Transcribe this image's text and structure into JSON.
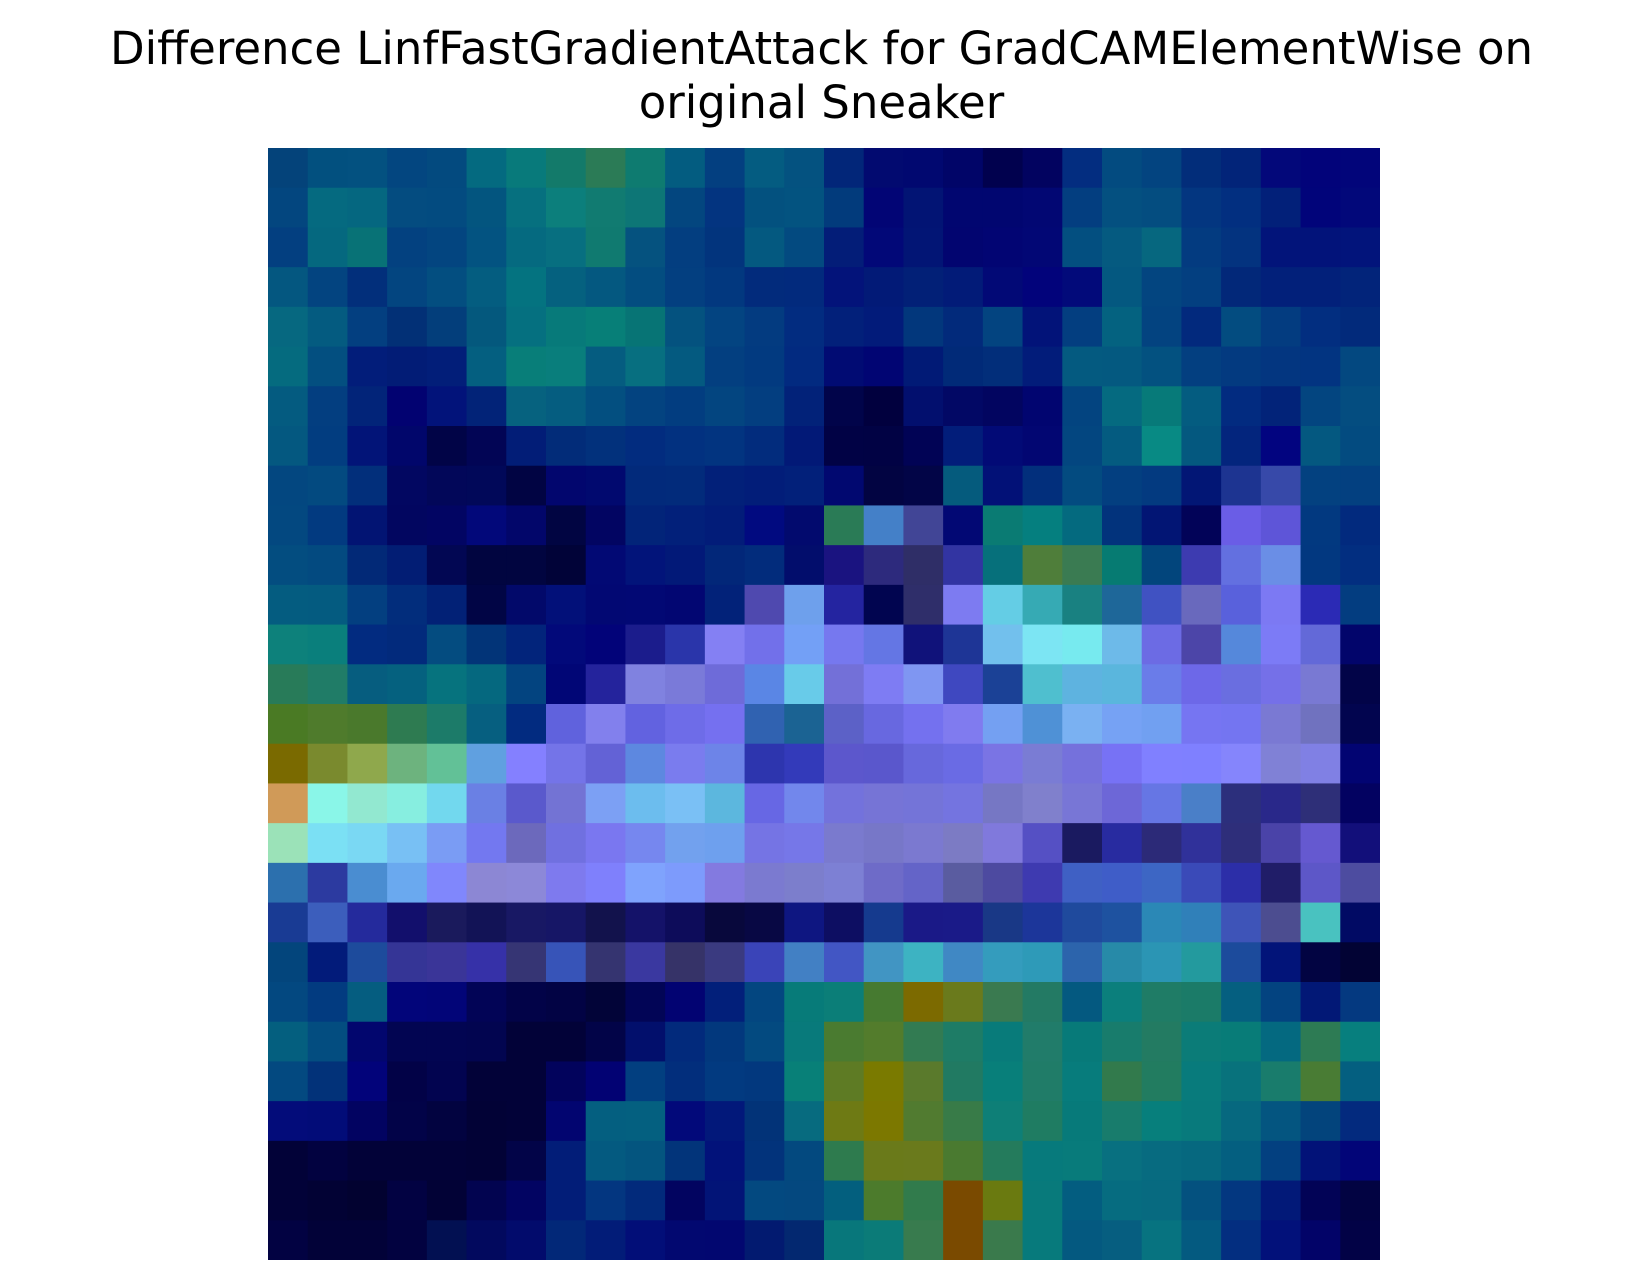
{
  "title_lines": [
    "Difference LinfFastGradientAttack for GradCAMElementWise on",
    "original Sneaker"
  ],
  "chart_data": {
    "type": "heatmap",
    "title": "Difference LinfFastGradientAttack for GradCAMElementWise on original Sneaker",
    "xlabel": "",
    "ylabel": "",
    "axes_visible": false,
    "grid": false,
    "rows": 28,
    "cols": 28,
    "values": [
      [
        "#04437a",
        "#02507f",
        "#035180",
        "#034680",
        "#034a7f",
        "#046a80",
        "#087a7b",
        "#137a6a",
        "#2b7b56",
        "#0e7b70",
        "#035c80",
        "#033f80",
        "#045c81",
        "#045280",
        "#022679",
        "#020a70",
        "#010870",
        "#010568",
        "#01014e",
        "#020360",
        "#032d80",
        "#034b80",
        "#034480",
        "#022d7a",
        "#022479",
        "#03087a",
        "#02037a",
        "#02057a"
      ],
      [
        "#03467f",
        "#056a80",
        "#056780",
        "#044c80",
        "#034b80",
        "#03557f",
        "#06707f",
        "#0c7f7c",
        "#117b71",
        "#0d7676",
        "#03467f",
        "#033480",
        "#03517f",
        "#035380",
        "#023b7c",
        "#020575",
        "#021474",
        "#010670",
        "#010670",
        "#020773",
        "#033e80",
        "#045080",
        "#044d80",
        "#033680",
        "#022f80",
        "#022079",
        "#01047a",
        "#02087a"
      ],
      [
        "#033f80",
        "#05687f",
        "#087276",
        "#034180",
        "#034580",
        "#035381",
        "#056a80",
        "#076f80",
        "#107a70",
        "#05527f",
        "#033e80",
        "#02347d",
        "#045980",
        "#034a80",
        "#031d78",
        "#020878",
        "#021575",
        "#020570",
        "#020573",
        "#020775",
        "#034f80",
        "#055a80",
        "#06677f",
        "#033b80",
        "#03337f",
        "#02147a",
        "#02137a",
        "#02147b"
      ],
      [
        "#045780",
        "#034480",
        "#022f7b",
        "#034580",
        "#034e80",
        "#045d80",
        "#047380",
        "#05617f",
        "#045880",
        "#034d80",
        "#033f80",
        "#02387f",
        "#022b7c",
        "#022a7d",
        "#03137a",
        "#021a77",
        "#022077",
        "#021b78",
        "#020976",
        "#02037b",
        "#020a7a",
        "#045880",
        "#034580",
        "#033f80",
        "#022879",
        "#02207a",
        "#02207a",
        "#02247a"
      ],
      [
        "#066880",
        "#045b80",
        "#033f80",
        "#023076",
        "#033e7b",
        "#04587d",
        "#057080",
        "#077a7a",
        "#077f78",
        "#077475",
        "#04527f",
        "#034481",
        "#033b80",
        "#022c80",
        "#02207a",
        "#021b7a",
        "#02377c",
        "#022a7b",
        "#034480",
        "#021379",
        "#033e80",
        "#046280",
        "#034380",
        "#02297d",
        "#034c80",
        "#033c80",
        "#022e80",
        "#022a7b"
      ],
      [
        "#056b7f",
        "#034f80",
        "#021d7a",
        "#021c76",
        "#021e79",
        "#045f80",
        "#087e79",
        "#097e7c",
        "#055c80",
        "#076f80",
        "#045a80",
        "#033f80",
        "#023a80",
        "#022a80",
        "#010b73",
        "#010573",
        "#011a76",
        "#012a78",
        "#022e7a",
        "#021c7a",
        "#045a80",
        "#045980",
        "#035180",
        "#033f80",
        "#033a80",
        "#033680",
        "#023481",
        "#034880"
      ],
      [
        "#045b80",
        "#033e80",
        "#022479",
        "#020271",
        "#02137a",
        "#022378",
        "#06627f",
        "#055d80",
        "#034f80",
        "#034380",
        "#023d80",
        "#034580",
        "#033e80",
        "#022279",
        "#01044a",
        "#01003e",
        "#020f6e",
        "#020865",
        "#020560",
        "#010570",
        "#034480",
        "#056a80",
        "#077a79",
        "#045c80",
        "#022b80",
        "#022379",
        "#034580",
        "#044d80"
      ],
      [
        "#045880",
        "#023d80",
        "#021478",
        "#01066b",
        "#010447",
        "#020555",
        "#021d77",
        "#022c79",
        "#02317c",
        "#022c7f",
        "#023180",
        "#023480",
        "#022c7d",
        "#021977",
        "#010245",
        "#010244",
        "#010355",
        "#021d7a",
        "#020a76",
        "#020672",
        "#034680",
        "#045b80",
        "#088a84",
        "#04587f",
        "#03257d",
        "#020480",
        "#045880",
        "#034b80"
      ],
      [
        "#034780",
        "#034a80",
        "#022f7b",
        "#020761",
        "#020759",
        "#010859",
        "#010443",
        "#02066e",
        "#01096f",
        "#022a7b",
        "#022b7b",
        "#022079",
        "#021d79",
        "#02207a",
        "#010870",
        "#020442",
        "#020547",
        "#055b7d",
        "#021177",
        "#022f7c",
        "#034b80",
        "#033f80",
        "#033a80",
        "#021675",
        "#1d3491",
        "#3749a9",
        "#034180",
        "#034080"
      ],
      [
        "#034880",
        "#023a80",
        "#021473",
        "#020660",
        "#020563",
        "#02087a",
        "#02066a",
        "#010542",
        "#020562",
        "#022479",
        "#02207a",
        "#021c79",
        "#010a80",
        "#020a6e",
        "#2a7b56",
        "#4480c8",
        "#414596",
        "#020874",
        "#0a7b73",
        "#057f7f",
        "#046a7f",
        "#02337c",
        "#021574",
        "#020358",
        "#6a5de6",
        "#5e55d8",
        "#023980",
        "#022a7e"
      ],
      [
        "#034d80",
        "#034a80",
        "#022977",
        "#021d74",
        "#020753",
        "#010540",
        "#010540",
        "#010338",
        "#020974",
        "#02147a",
        "#021978",
        "#022779",
        "#022c7c",
        "#020d6c",
        "#1a1380",
        "#2d2a7d",
        "#2f2e67",
        "#3234a2",
        "#06707b",
        "#4f7e3a",
        "#3a7b52",
        "#067b72",
        "#02457c",
        "#3d3bb0",
        "#6370e0",
        "#6a8ee6",
        "#023880",
        "#022e80"
      ],
      [
        "#045c80",
        "#045b80",
        "#033f80",
        "#022d7c",
        "#022176",
        "#010545",
        "#02096a",
        "#021079",
        "#020873",
        "#020874",
        "#020672",
        "#022279",
        "#4f49af",
        "#6ea0ec",
        "#2424a0",
        "#010550",
        "#2f2e6a",
        "#7d7bf1",
        "#64cde5",
        "#36aab4",
        "#198181",
        "#1e6799",
        "#4052c2",
        "#6969bd",
        "#5961dc",
        "#7c79f3",
        "#2b2ab5",
        "#033d80"
      ],
      [
        "#0d817b",
        "#0a7f7c",
        "#022b80",
        "#022a7c",
        "#044c80",
        "#023478",
        "#02247b",
        "#02097a",
        "#020379",
        "#1b1c8c",
        "#2a35aa",
        "#8480f3",
        "#7270ea",
        "#73a0f6",
        "#7678ef",
        "#6476e4",
        "#10127a",
        "#1e3596",
        "#72c0ed",
        "#7ce5f3",
        "#77eaef",
        "#6dbae9",
        "#6c6be4",
        "#4c45a8",
        "#5588db",
        "#7c7bf6",
        "#6369d8",
        "#02056b"
      ],
      [
        "#287b59",
        "#207c67",
        "#065d7f",
        "#05617f",
        "#06737e",
        "#05687f",
        "#034480",
        "#010676",
        "#24239c",
        "#8082e0",
        "#7a7ad9",
        "#6e6bd9",
        "#5a86e5",
        "#68cbe9",
        "#7370d8",
        "#7e7cf3",
        "#7f96f2",
        "#3f48c0",
        "#1b4196",
        "#4fbfcf",
        "#5eb3e0",
        "#5ab6dd",
        "#6a7ce9",
        "#6d68e8",
        "#6a6ee0",
        "#7570e8",
        "#7979d3",
        "#020448"
      ],
      [
        "#4a7a24",
        "#4f7b2c",
        "#4a792c",
        "#2e7b51",
        "#1c7b69",
        "#065f80",
        "#022b80",
        "#6062dd",
        "#8280ed",
        "#6262e0",
        "#6e6ce8",
        "#7570f0",
        "#3062b1",
        "#1b6393",
        "#5c61c7",
        "#6868e0",
        "#7471ef",
        "#807bef",
        "#74a0f2",
        "#4f91d6",
        "#7ab1f2",
        "#76a2f4",
        "#71a0f1",
        "#7675f2",
        "#7475f1",
        "#7a79d3",
        "#7072bf",
        "#02054f"
      ],
      [
        "#7a6a00",
        "#7a8a2e",
        "#8fa84c",
        "#6db37e",
        "#62c197",
        "#60a0e0",
        "#8480ff",
        "#7474e8",
        "#6362d6",
        "#5d88e0",
        "#7a7cee",
        "#6d84e8",
        "#2d35ae",
        "#333aba",
        "#5c57cc",
        "#5a57cc",
        "#6768dc",
        "#6a6be4",
        "#7a74e4",
        "#7a7cd4",
        "#7571dc",
        "#7772f5",
        "#8080ff",
        "#7f80ff",
        "#8585fc",
        "#8081d6",
        "#8080e4",
        "#020472"
      ],
      [
        "#d09a58",
        "#8af6e8",
        "#92e8d0",
        "#87eee0",
        "#72d8ee",
        "#6a80e4",
        "#5a59cc",
        "#7373d4",
        "#7ca0f4",
        "#6cbdee",
        "#7ac0f5",
        "#5cb7de",
        "#6767e4",
        "#7287ec",
        "#7372dc",
        "#7674d6",
        "#7474d8",
        "#7474e0",
        "#7677c4",
        "#8080cc",
        "#7876d6",
        "#6d67d7",
        "#6676e4",
        "#4a7fc8",
        "#2c2f7c",
        "#29288a",
        "#2e2f78",
        "#030261"
      ],
      [
        "#9be2b8",
        "#7be0f4",
        "#7ad8f3",
        "#78c0f4",
        "#7a9cf4",
        "#7378f0",
        "#6c69bc",
        "#7070e0",
        "#7a77f0",
        "#7687ef",
        "#72a1ee",
        "#6ea0ee",
        "#7574e4",
        "#7677e8",
        "#7a7ace",
        "#7777c8",
        "#7b79d0",
        "#7c7bc4",
        "#8079dc",
        "#5550c4",
        "#1a1a60",
        "#282ba0",
        "#2c2a78",
        "#30319a",
        "#2e2e7a",
        "#4a43a8",
        "#6559d0",
        "#120f7a"
      ],
      [
        "#2c70ae",
        "#2c3aa0",
        "#4a8dd1",
        "#6aa9ef",
        "#8087fc",
        "#8c87d4",
        "#8c88d8",
        "#7e7aee",
        "#7f80fc",
        "#7fa3fd",
        "#7d9bfc",
        "#837ae0",
        "#7b7ad0",
        "#7c7ecc",
        "#7d80d4",
        "#6e6bc8",
        "#6464c8",
        "#5a5ca0",
        "#4d4aa0",
        "#3e3ab0",
        "#3f60c4",
        "#3f5dc8",
        "#3d66c4",
        "#3a4ab8",
        "#2c2ea8",
        "#201d68",
        "#5d57c8",
        "#4d4ca0"
      ],
      [
        "#193b94",
        "#3c5ebc",
        "#242a9c",
        "#120f6c",
        "#1a1a5c",
        "#121356",
        "#181864",
        "#161666",
        "#12124c",
        "#141269",
        "#0d0c5a",
        "#08083c",
        "#080844",
        "#0e1681",
        "#0d0e62",
        "#153a8e",
        "#1a1987",
        "#1a1a88",
        "#193886",
        "#1c369a",
        "#1f4a9d",
        "#1e52a0",
        "#2b88b6",
        "#3080b9",
        "#3e54b8",
        "#4c4d90",
        "#49c2c0",
        "#010a64"
      ],
      [
        "#03457c",
        "#021b7a",
        "#1d4b9c",
        "#353596",
        "#3a3598",
        "#3631a8",
        "#363574",
        "#3754b8",
        "#353470",
        "#3a38a0",
        "#363368",
        "#3a3a80",
        "#3a44b8",
        "#4280c4",
        "#4256c4",
        "#4195c3",
        "#3db3c2",
        "#4088c4",
        "#349cbd",
        "#2e9ab8",
        "#2c64ac",
        "#278aa8",
        "#2b95b4",
        "#239a9e",
        "#1c4b9c",
        "#021479",
        "#020442",
        "#020334"
      ],
      [
        "#034880",
        "#023b80",
        "#055d80",
        "#02057a",
        "#020578",
        "#020456",
        "#020348",
        "#020344",
        "#020438",
        "#020556",
        "#020372",
        "#021f7a",
        "#034680",
        "#077b79",
        "#0b7e78",
        "#467a30",
        "#7c6a00",
        "#6a7a1c",
        "#3a7a50",
        "#237a64",
        "#045980",
        "#0b7f7c",
        "#1f7c66",
        "#1b7b68",
        "#055f80",
        "#034380",
        "#021876",
        "#043980"
      ],
      [
        "#045f7f",
        "#034d80",
        "#02066e",
        "#020552",
        "#020552",
        "#020550",
        "#020238",
        "#020238",
        "#020448",
        "#020f6c",
        "#022a7c",
        "#02387d",
        "#034a80",
        "#087a7b",
        "#4a7b30",
        "#537c2c",
        "#327b52",
        "#1e7c66",
        "#087b7a",
        "#217c6a",
        "#077a79",
        "#187c6c",
        "#237b62",
        "#0b7c78",
        "#087c78",
        "#046980",
        "#2d7b54",
        "#077f7e"
      ],
      [
        "#034980",
        "#023279",
        "#02037a",
        "#020247",
        "#020450",
        "#020238",
        "#020238",
        "#02035c",
        "#020273",
        "#023f80",
        "#022e7c",
        "#023a80",
        "#02387e",
        "#088078",
        "#5e7b24",
        "#7a7a00",
        "#5a7a2c",
        "#217a62",
        "#087f7a",
        "#207c68",
        "#077c7c",
        "#327a4c",
        "#227c60",
        "#087b7c",
        "#08727c",
        "#197c6c",
        "#497c34",
        "#045f80"
      ],
      [
        "#030c7a",
        "#020c78",
        "#020361",
        "#020348",
        "#020340",
        "#020236",
        "#020238",
        "#020570",
        "#045f80",
        "#046080",
        "#02097a",
        "#02187a",
        "#023378",
        "#076b7f",
        "#6e7a14",
        "#7c7800",
        "#517b30",
        "#387b48",
        "#0e7f77",
        "#1f7c62",
        "#077a7a",
        "#187c6c",
        "#077f7c",
        "#087a7c",
        "#06687f",
        "#045580",
        "#03447c",
        "#032a7e"
      ],
      [
        "#020238",
        "#020240",
        "#020238",
        "#020238",
        "#020238",
        "#020236",
        "#020448",
        "#021d78",
        "#045a80",
        "#04557f",
        "#02347a",
        "#02127a",
        "#02337b",
        "#03497f",
        "#2e7b4e",
        "#6a7a1a",
        "#6a7a1c",
        "#4a7a30",
        "#247b5c",
        "#077a7c",
        "#087b7b",
        "#087080",
        "#076b80",
        "#06687f",
        "#045f80",
        "#034080",
        "#021278",
        "#020578"
      ],
      [
        "#020238",
        "#020234",
        "#020230",
        "#020242",
        "#020236",
        "#020450",
        "#020462",
        "#021d78",
        "#033680",
        "#022a7b",
        "#020460",
        "#021477",
        "#034980",
        "#04487f",
        "#035f7e",
        "#4c7b2c",
        "#317b4c",
        "#7a4a00",
        "#6a7a10",
        "#087a7b",
        "#035d80",
        "#066c80",
        "#076a80",
        "#04517f",
        "#033780",
        "#021978",
        "#020356",
        "#020342"
      ],
      [
        "#020242",
        "#020238",
        "#020238",
        "#020240",
        "#021052",
        "#02095e",
        "#020b6c",
        "#022878",
        "#021c78",
        "#020e78",
        "#020870",
        "#020770",
        "#021a70",
        "#032870",
        "#08777b",
        "#0b7b78",
        "#387b4e",
        "#7a4a00",
        "#3a7a4c",
        "#077a7c",
        "#045980",
        "#065e80",
        "#077380",
        "#045a80",
        "#032e80",
        "#02117a",
        "#020368",
        "#020246"
      ]
    ]
  }
}
